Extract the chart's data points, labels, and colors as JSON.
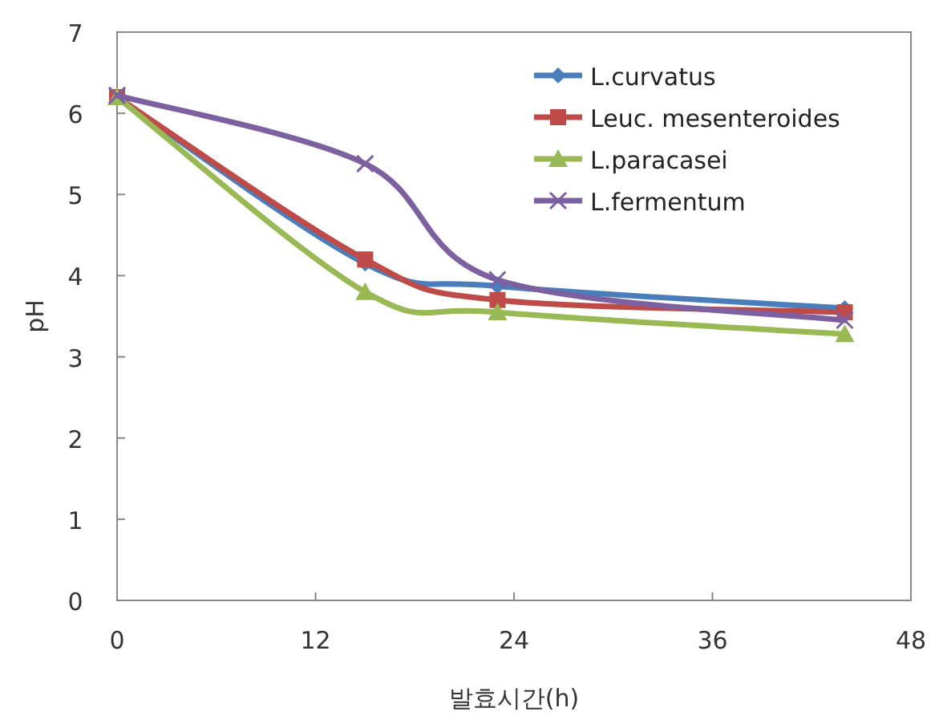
{
  "chart_data": {
    "type": "line",
    "xlabel": "발효시간(h)",
    "ylabel": "pH",
    "x": [
      0,
      15,
      23,
      44
    ],
    "xlim": [
      0,
      48
    ],
    "xticks": [
      0,
      12,
      24,
      36,
      48
    ],
    "ylim": [
      0,
      7
    ],
    "yticks": [
      0,
      1,
      2,
      3,
      4,
      5,
      6,
      7
    ],
    "grid": false,
    "legend": "top right",
    "line_style": "solid",
    "series": [
      {
        "name": "L.curvatus",
        "color": "#4a7ebb",
        "marker": "diamond",
        "values": [
          6.2,
          4.15,
          3.87,
          3.6
        ]
      },
      {
        "name": "Leuc. mesenteroides",
        "color": "#be4b48",
        "marker": "square",
        "values": [
          6.2,
          4.2,
          3.7,
          3.55
        ]
      },
      {
        "name": "L.paracasei",
        "color": "#98b954",
        "marker": "triangle",
        "values": [
          6.2,
          3.8,
          3.55,
          3.28
        ]
      },
      {
        "name": "L.fermentum",
        "color": "#7d60a0",
        "marker": "cross",
        "values": [
          6.22,
          5.38,
          3.95,
          3.45
        ]
      }
    ]
  }
}
